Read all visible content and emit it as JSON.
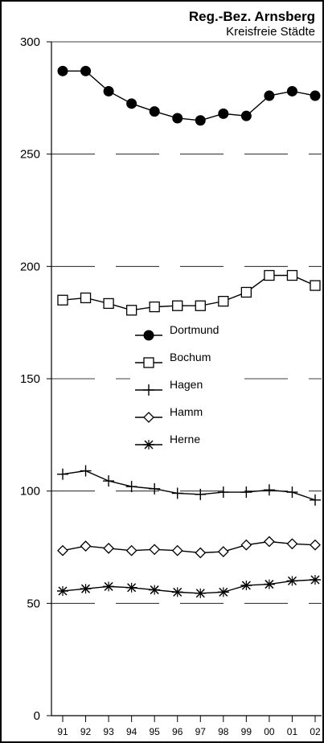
{
  "chart_data": {
    "type": "line",
    "title": "Reg.-Bez. Arnsberg",
    "subtitle": "Kreisfreie Städte",
    "xlabel": "",
    "ylabel": "",
    "categories": [
      "91",
      "92",
      "93",
      "94",
      "95",
      "96",
      "97",
      "98",
      "99",
      "00",
      "01",
      "02"
    ],
    "yticks": [
      "0",
      "50",
      "100",
      "150",
      "200",
      "250",
      "300"
    ],
    "ylim": [
      0,
      300
    ],
    "grid": "horizontal dashed",
    "legend_position": "center",
    "series": [
      {
        "name": "Dortmund",
        "marker": "filled-circle",
        "values": [
          287,
          287,
          278,
          272.5,
          269,
          266,
          265,
          268,
          267,
          276,
          278,
          276
        ]
      },
      {
        "name": "Bochum",
        "marker": "open-square",
        "values": [
          185,
          186,
          183.5,
          180.5,
          182,
          182.5,
          182.5,
          184.5,
          188.5,
          196,
          196,
          191.5
        ]
      },
      {
        "name": "Hagen",
        "marker": "plus",
        "values": [
          107.5,
          109,
          104.5,
          102,
          101,
          99,
          98.5,
          99.5,
          99.5,
          100.5,
          99.5,
          96
        ]
      },
      {
        "name": "Hamm",
        "marker": "open-diamond",
        "values": [
          73.5,
          75.5,
          74.5,
          73.5,
          74,
          73.5,
          72.5,
          73,
          76,
          77.5,
          76.5,
          76
        ]
      },
      {
        "name": "Herne",
        "marker": "asterisk",
        "values": [
          55.5,
          56.5,
          57.5,
          57,
          56,
          55,
          54.5,
          55,
          58,
          58.5,
          60,
          60.5
        ]
      }
    ]
  }
}
